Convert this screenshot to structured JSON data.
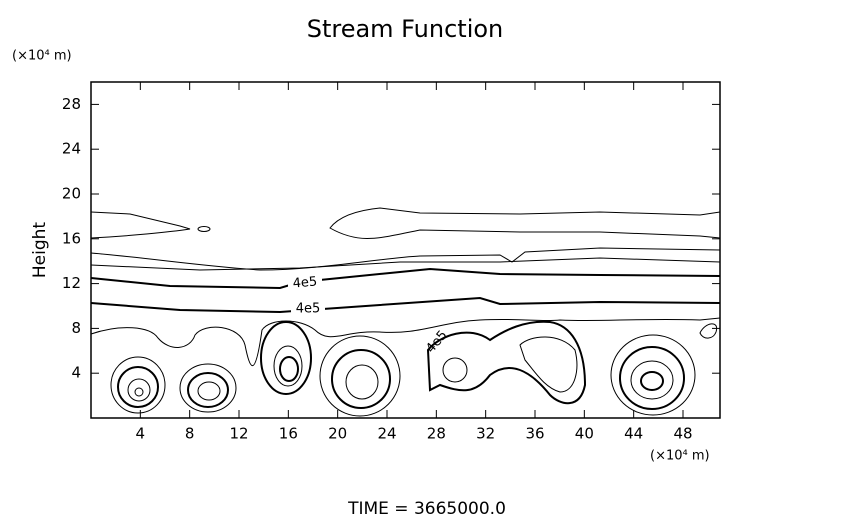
{
  "chart_data": {
    "type": "contour",
    "title": "Stream Function",
    "ylabel": "Height",
    "y_unit": "(×10⁴ m)",
    "x_unit": "(×10⁴ m)",
    "footer": "TIME = 3665000.0",
    "xlim": [
      0,
      51
    ],
    "xticks": [
      4,
      8,
      12,
      16,
      20,
      24,
      28,
      32,
      36,
      40,
      44,
      48
    ],
    "ylim": [
      0,
      30
    ],
    "yticks": [
      4,
      8,
      12,
      16,
      20,
      24,
      28
    ],
    "contour_labels": [
      "4e5",
      "4e5",
      "4e5"
    ],
    "color": "#000000"
  }
}
